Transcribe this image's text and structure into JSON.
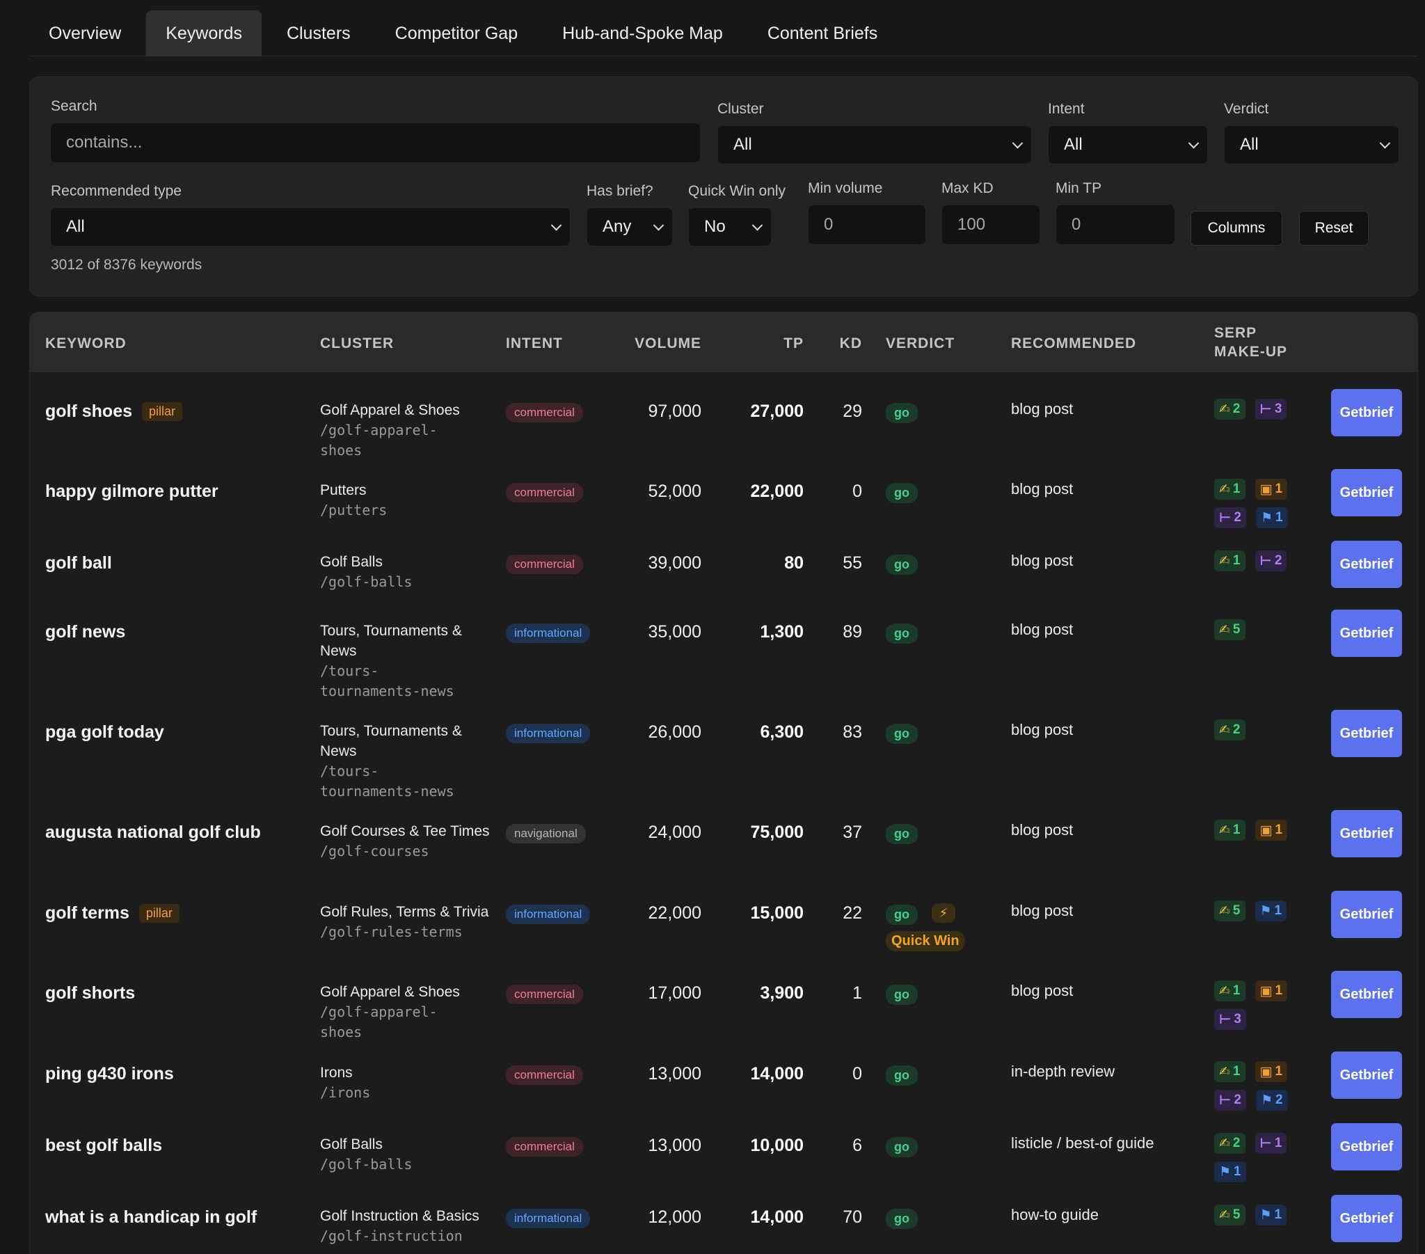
{
  "tabs": [
    "Overview",
    "Keywords",
    "Clusters",
    "Competitor Gap",
    "Hub-and-Spoke Map",
    "Content Briefs"
  ],
  "filters": {
    "search_label": "Search",
    "search_placeholder": "contains...",
    "cluster_label": "Cluster",
    "cluster_value": "All",
    "intent_label": "Intent",
    "intent_value": "All",
    "verdict_label": "Verdict",
    "verdict_value": "All",
    "rectype_label": "Recommended type",
    "rectype_value": "All",
    "hasbrief_label": "Has brief?",
    "hasbrief_value": "Any",
    "quickwin_label": "Quick Win only",
    "quickwin_value": "No",
    "minvol_label": "Min volume",
    "minvol_value": "0",
    "maxkd_label": "Max KD",
    "maxkd_value": "100",
    "mintp_label": "Min TP",
    "mintp_value": "0",
    "columns_label": "Columns",
    "reset_label": "Reset",
    "count_text": "3012 of 8376 keywords"
  },
  "table": {
    "headers": {
      "keyword": "KEYWORD",
      "cluster": "CLUSTER",
      "intent": "INTENT",
      "volume": "VOLUME",
      "tp": "TP",
      "kd": "KD",
      "verdict": "VERDICT",
      "recommended": "RECOMMENDED",
      "serp_line1": "SERP",
      "serp_line2": "MAKE-UP"
    },
    "get_brief_line1": "Get",
    "get_brief_line2": "brief",
    "pillar_label": "pillar",
    "quick_win_label": "Quick Win",
    "bolt_icon": "⚡",
    "serp_icons": {
      "green": "✍",
      "purple": "⊢",
      "orange": "▣",
      "blue": "⚑"
    },
    "rows": [
      {
        "keyword": "golf shoes",
        "pillar": true,
        "cluster": "Golf Apparel & Shoes",
        "slug": "/golf-apparel-\nshoes",
        "intent": "commercial",
        "volume": "97,000",
        "tp": "27,000",
        "kd": "29",
        "verdict": "go",
        "quick_win": false,
        "recommended": "blog post",
        "serp": [
          {
            "t": "green",
            "n": "2"
          },
          {
            "t": "purple",
            "n": "3"
          }
        ]
      },
      {
        "keyword": "happy gilmore putter",
        "pillar": false,
        "cluster": "Putters",
        "slug": "/putters",
        "intent": "commercial",
        "volume": "52,000",
        "tp": "22,000",
        "kd": "0",
        "verdict": "go",
        "quick_win": false,
        "recommended": "blog post",
        "serp": [
          {
            "t": "green",
            "n": "1"
          },
          {
            "t": "orange",
            "n": "1"
          },
          {
            "t": "purple",
            "n": "2"
          },
          {
            "t": "blue",
            "n": "1"
          }
        ]
      },
      {
        "keyword": "golf ball",
        "pillar": false,
        "cluster": "Golf Balls",
        "slug": "/golf-balls",
        "intent": "commercial",
        "volume": "39,000",
        "tp": "80",
        "kd": "55",
        "verdict": "go",
        "quick_win": false,
        "recommended": "blog post",
        "serp": [
          {
            "t": "green",
            "n": "1"
          },
          {
            "t": "purple",
            "n": "2"
          }
        ]
      },
      {
        "keyword": "golf news",
        "pillar": false,
        "cluster": "Tours, Tournaments & News",
        "slug": "/tours-\ntournaments-news",
        "intent": "informational",
        "volume": "35,000",
        "tp": "1,300",
        "kd": "89",
        "verdict": "go",
        "quick_win": false,
        "recommended": "blog post",
        "serp": [
          {
            "t": "green",
            "n": "5"
          }
        ]
      },
      {
        "keyword": "pga golf today",
        "pillar": false,
        "cluster": "Tours, Tournaments & News",
        "slug": "/tours-\ntournaments-news",
        "intent": "informational",
        "volume": "26,000",
        "tp": "6,300",
        "kd": "83",
        "verdict": "go",
        "quick_win": false,
        "recommended": "blog post",
        "serp": [
          {
            "t": "green",
            "n": "2"
          }
        ]
      },
      {
        "keyword": "augusta national golf club",
        "pillar": false,
        "cluster": "Golf Courses & Tee Times",
        "slug": "/golf-courses",
        "intent": "navigational",
        "volume": "24,000",
        "tp": "75,000",
        "kd": "37",
        "verdict": "go",
        "quick_win": false,
        "recommended": "blog post",
        "serp": [
          {
            "t": "green",
            "n": "1"
          },
          {
            "t": "orange",
            "n": "1"
          }
        ]
      },
      {
        "keyword": "golf terms",
        "pillar": true,
        "cluster": "Golf Rules, Terms & Trivia",
        "slug": "/golf-rules-terms",
        "intent": "informational",
        "volume": "22,000",
        "tp": "15,000",
        "kd": "22",
        "verdict": "go",
        "quick_win": true,
        "recommended": "blog post",
        "serp": [
          {
            "t": "green",
            "n": "5"
          },
          {
            "t": "blue",
            "n": "1"
          }
        ]
      },
      {
        "keyword": "golf shorts",
        "pillar": false,
        "cluster": "Golf Apparel & Shoes",
        "slug": "/golf-apparel-\nshoes",
        "intent": "commercial",
        "volume": "17,000",
        "tp": "3,900",
        "kd": "1",
        "verdict": "go",
        "quick_win": false,
        "recommended": "blog post",
        "serp": [
          {
            "t": "green",
            "n": "1"
          },
          {
            "t": "orange",
            "n": "1"
          },
          {
            "t": "purple",
            "n": "3"
          }
        ]
      },
      {
        "keyword": "ping g430 irons",
        "pillar": false,
        "cluster": "Irons",
        "slug": "/irons",
        "intent": "commercial",
        "volume": "13,000",
        "tp": "14,000",
        "kd": "0",
        "verdict": "go",
        "quick_win": false,
        "recommended": "in-depth review",
        "serp": [
          {
            "t": "green",
            "n": "1"
          },
          {
            "t": "orange",
            "n": "1"
          },
          {
            "t": "purple",
            "n": "2"
          },
          {
            "t": "blue",
            "n": "2"
          }
        ]
      },
      {
        "keyword": "best golf balls",
        "pillar": false,
        "cluster": "Golf Balls",
        "slug": "/golf-balls",
        "intent": "commercial",
        "volume": "13,000",
        "tp": "10,000",
        "kd": "6",
        "verdict": "go",
        "quick_win": false,
        "recommended": "listicle / best-of guide",
        "serp": [
          {
            "t": "green",
            "n": "2"
          },
          {
            "t": "purple",
            "n": "1"
          },
          {
            "t": "blue",
            "n": "1"
          }
        ]
      },
      {
        "keyword": "what is a handicap in golf",
        "pillar": false,
        "cluster": "Golf Instruction & Basics",
        "slug": "/golf-instruction",
        "intent": "informational",
        "volume": "12,000",
        "tp": "14,000",
        "kd": "70",
        "verdict": "go",
        "quick_win": false,
        "recommended": "how-to guide",
        "serp": [
          {
            "t": "green",
            "n": "5"
          },
          {
            "t": "blue",
            "n": "1"
          }
        ]
      }
    ]
  }
}
